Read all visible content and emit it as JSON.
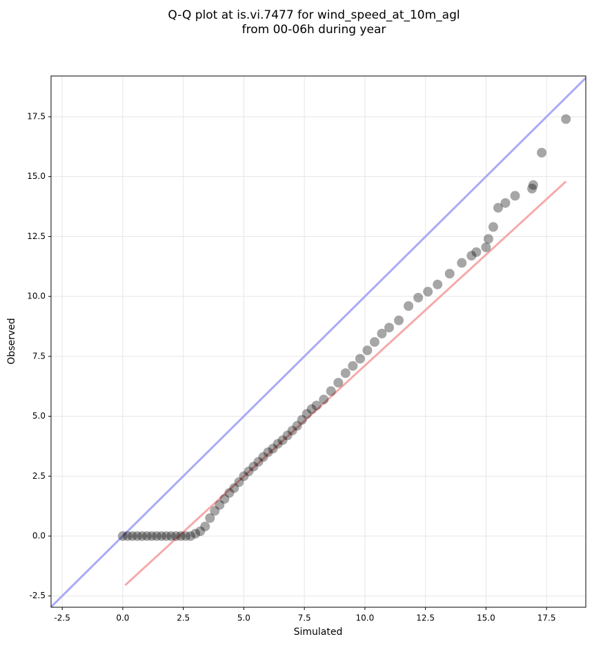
{
  "chart_data": {
    "type": "scatter",
    "title": [
      "Q-Q plot at is.vi.7477 for wind_speed_at_10m_agl",
      "from 00-06h during year"
    ],
    "xlabel": "Simulated",
    "ylabel": "Observed",
    "xlim": [
      -2.96,
      19.12
    ],
    "ylim": [
      -2.97,
      19.2
    ],
    "xticks": [
      -2.5,
      {
        "value": 0,
        "label": "0.0"
      },
      2.5,
      {
        "value": 5,
        "label": "5.0"
      },
      7.5,
      {
        "value": 10,
        "label": "10.0"
      },
      12.5,
      {
        "value": 15,
        "label": "15.0"
      },
      17.5
    ],
    "yticks": [
      -2.5,
      {
        "value": 0,
        "label": "0.0"
      },
      2.5,
      {
        "value": 5,
        "label": "5.0"
      },
      7.5,
      {
        "value": 10,
        "label": "10.0"
      },
      12.5,
      {
        "value": 15,
        "label": "15.0"
      },
      17.5
    ],
    "grid": true,
    "series": [
      {
        "color": "#000000",
        "x": [
          0,
          0.2,
          0.4,
          0.6,
          0.8,
          1.0,
          1.2,
          1.4,
          1.6,
          1.8,
          2.0,
          2.2,
          2.4,
          2.6,
          2.8,
          3.0,
          3.2,
          3.4,
          3.6,
          3.8,
          4.0,
          4.2,
          4.4,
          4.6,
          4.8,
          5.0,
          5.2,
          5.4,
          5.6,
          5.8,
          6.0,
          6.2,
          6.4,
          6.6,
          6.8,
          7.0,
          7.2,
          7.4,
          7.6,
          7.8,
          8.0,
          8.3,
          8.6,
          8.9,
          9.2,
          9.5,
          9.8,
          10.1,
          10.4,
          10.7,
          11.0,
          11.4,
          11.8,
          12.2,
          12.6,
          13.0,
          13.5,
          14.0,
          14.4,
          14.6,
          15.0,
          15.1,
          15.3,
          15.5,
          15.8,
          16.2,
          16.9,
          16.95,
          17.3,
          18.3
        ],
        "y": [
          0,
          0,
          0,
          0,
          0,
          0,
          0,
          0,
          0,
          0,
          0,
          0,
          0,
          0,
          0,
          0.1,
          0.2,
          0.4,
          0.75,
          1.05,
          1.3,
          1.55,
          1.8,
          2.0,
          2.25,
          2.5,
          2.7,
          2.9,
          3.1,
          3.3,
          3.5,
          3.65,
          3.85,
          4.0,
          4.2,
          4.4,
          4.6,
          4.85,
          5.1,
          5.3,
          5.45,
          5.7,
          6.05,
          6.4,
          6.8,
          7.1,
          7.4,
          7.75,
          8.1,
          8.45,
          8.7,
          9.0,
          9.6,
          9.95,
          10.2,
          10.5,
          10.95,
          11.4,
          11.7,
          11.85,
          12.05,
          12.4,
          12.9,
          13.7,
          13.9,
          14.2,
          14.5,
          14.65,
          16.0,
          17.4
        ]
      }
    ],
    "reference_lines": [
      {
        "color": "#aaaaf5",
        "x": [
          -2.96,
          19.12
        ],
        "y": [
          -2.96,
          19.12
        ]
      },
      {
        "color": "#f5aaaa",
        "x": [
          0.1,
          18.3
        ],
        "y": [
          -2.05,
          14.8
        ]
      }
    ]
  }
}
